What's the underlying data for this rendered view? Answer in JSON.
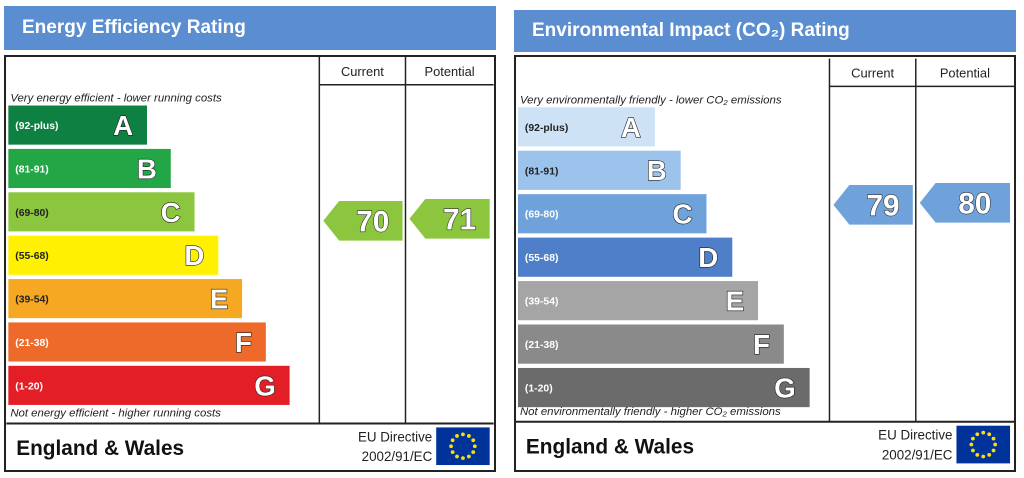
{
  "chart_data": [
    {
      "type": "bar",
      "title": "Energy Efficiency Rating",
      "top_note": "Very energy efficient - lower running costs",
      "bottom_note": "Not energy efficient - higher running costs",
      "columns": [
        "Current",
        "Potential"
      ],
      "bands": [
        {
          "range": "(92-plus)",
          "letter": "A",
          "color": "#0e8142"
        },
        {
          "range": "(81-91)",
          "letter": "B",
          "color": "#23a646"
        },
        {
          "range": "(69-80)",
          "letter": "C",
          "color": "#8cc63f"
        },
        {
          "range": "(55-68)",
          "letter": "D",
          "color": "#fff100"
        },
        {
          "range": "(39-54)",
          "letter": "E",
          "color": "#f7a823"
        },
        {
          "range": "(21-38)",
          "letter": "F",
          "color": "#ee6a2a"
        },
        {
          "range": "(1-20)",
          "letter": "G",
          "color": "#e41e26"
        }
      ],
      "current": 70,
      "potential": 71,
      "current_color": "#8cc63f",
      "potential_color": "#8cc63f",
      "footer_region": "England & Wales",
      "footer_directive_1": "EU Directive",
      "footer_directive_2": "2002/91/EC"
    },
    {
      "type": "bar",
      "title": "Environmental Impact (CO₂) Rating",
      "top_note": "Very environmentally friendly - lower CO₂ emissions",
      "bottom_note": "Not environmentally friendly - higher CO₂ emissions",
      "columns": [
        "Current",
        "Potential"
      ],
      "bands": [
        {
          "range": "(92-plus)",
          "letter": "A",
          "color": "#cde2f5"
        },
        {
          "range": "(81-91)",
          "letter": "B",
          "color": "#9cc3ec"
        },
        {
          "range": "(69-80)",
          "letter": "C",
          "color": "#6fa2db"
        },
        {
          "range": "(55-68)",
          "letter": "D",
          "color": "#4f7fc8"
        },
        {
          "range": "(39-54)",
          "letter": "E",
          "color": "#a5a5a5"
        },
        {
          "range": "(21-38)",
          "letter": "F",
          "color": "#8a8a8a"
        },
        {
          "range": "(1-20)",
          "letter": "G",
          "color": "#6b6b6b"
        }
      ],
      "current": 79,
      "potential": 80,
      "current_color": "#6fa2db",
      "potential_color": "#6fa2db",
      "footer_region": "England & Wales",
      "footer_directive_1": "EU Directive",
      "footer_directive_2": "2002/91/EC"
    }
  ]
}
